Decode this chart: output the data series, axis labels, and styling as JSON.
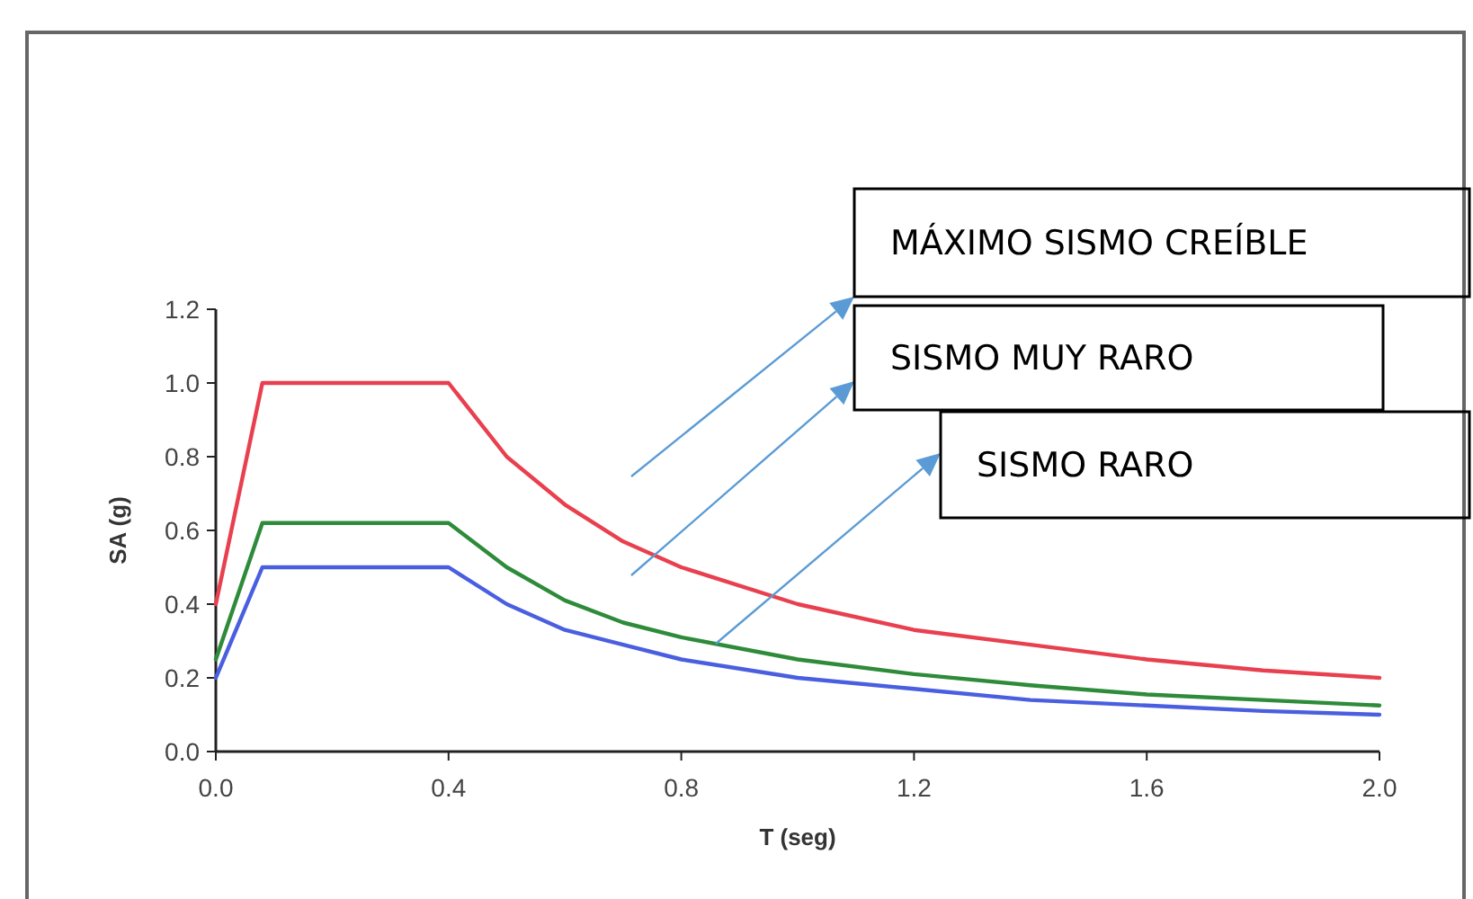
{
  "chart_data": {
    "type": "line",
    "xlabel": "T (seg)",
    "ylabel": "SA (g)",
    "x": [
      0,
      0.08,
      0.4,
      0.5,
      0.6,
      0.7,
      0.8,
      1.0,
      1.2,
      1.4,
      1.6,
      1.8,
      2.0
    ],
    "series": [
      {
        "color": "#e8404f",
        "values": [
          0.4,
          1.0,
          1.0,
          0.8,
          0.67,
          0.57,
          0.5,
          0.4,
          0.33,
          0.29,
          0.25,
          0.22,
          0.2
        ]
      },
      {
        "color": "#2e8b3a",
        "values": [
          0.25,
          0.62,
          0.62,
          0.5,
          0.41,
          0.35,
          0.31,
          0.25,
          0.21,
          0.18,
          0.155,
          0.14,
          0.125
        ]
      },
      {
        "color": "#4a5fe0",
        "values": [
          0.2,
          0.5,
          0.5,
          0.4,
          0.33,
          0.29,
          0.25,
          0.2,
          0.17,
          0.14,
          0.125,
          0.11,
          0.1
        ]
      }
    ],
    "annotations": [
      "MÁXIMO SISMO CREÍBLE",
      "SISMO MUY RARO",
      "SISMO RARO"
    ],
    "xlim": [
      0,
      2
    ],
    "xticks": [
      {
        "value": 0,
        "label": "0.0"
      },
      {
        "value": 0.4,
        "label": "0.4"
      },
      {
        "value": 0.8,
        "label": "0.8"
      },
      {
        "value": 1.2,
        "label": "1.2"
      },
      {
        "value": 1.6,
        "label": "1.6"
      },
      {
        "value": 2,
        "label": "2.0"
      }
    ],
    "ylim": [
      0,
      1.2
    ],
    "yticks": [
      {
        "value": 0,
        "label": "0.0"
      },
      {
        "value": 0.2,
        "label": "0.2"
      },
      {
        "value": 0.4,
        "label": "0.4"
      },
      {
        "value": 0.6,
        "label": "0.6"
      },
      {
        "value": 0.8,
        "label": "0.8"
      },
      {
        "value": 1,
        "label": "1.0"
      },
      {
        "value": 1.2,
        "label": "1.2"
      }
    ],
    "grid": false,
    "marker": "none",
    "line_style": "solid"
  }
}
